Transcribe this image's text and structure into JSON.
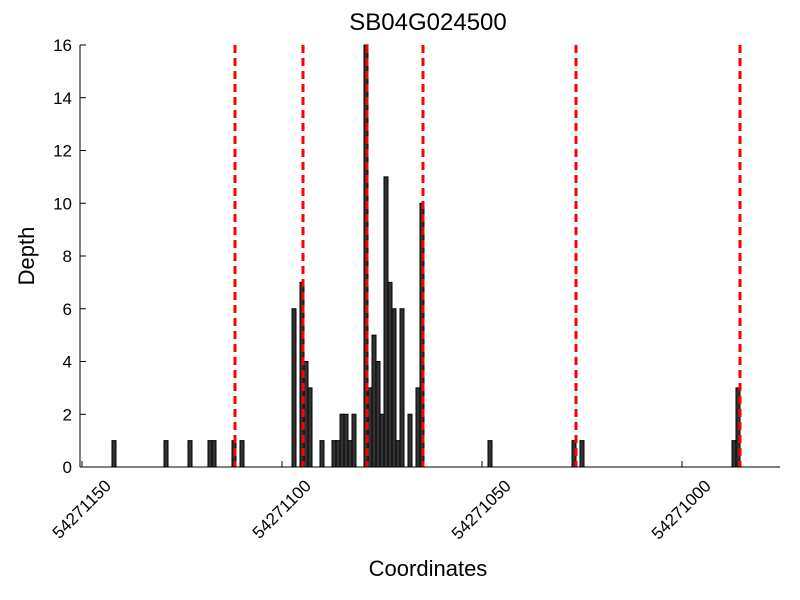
{
  "chart_data": {
    "type": "bar",
    "title": "SB04G024500",
    "xlabel": "Coordinates",
    "ylabel": "Depth",
    "x": [
      54271142,
      54271129,
      54271123,
      54271118,
      54271117,
      54271112,
      54271110,
      54271097,
      54271095,
      54271094,
      54271093,
      54271090,
      54271087,
      54271086,
      54271085,
      54271084,
      54271083,
      54271082,
      54271079,
      54271078,
      54271077,
      54271076,
      54271075,
      54271074,
      54271073,
      54271072,
      54271071,
      54271070,
      54271068,
      54271066,
      54271065,
      54271048,
      54271027,
      54271025,
      54270987,
      54270986
    ],
    "values": [
      1,
      1,
      1,
      1,
      1,
      1,
      1,
      6,
      7,
      4,
      3,
      1,
      1,
      1,
      2,
      2,
      1,
      2,
      16,
      3,
      5,
      4,
      2,
      11,
      7,
      6,
      1,
      6,
      2,
      3,
      10,
      1,
      1,
      1,
      1,
      3
    ],
    "color": "#333333",
    "boundaries": [
      54271111.75,
      54271094.75,
      54271078.75,
      54271064.75,
      54271026.5,
      54270985.5
    ],
    "boundary_color": "#ff0000",
    "xlim": [
      54271150.5,
      54270975.5
    ],
    "xticks": [
      54271150,
      54271100,
      54271050,
      54271000
    ],
    "ylim": [
      0,
      16
    ],
    "yticks": [
      0,
      2,
      4,
      6,
      8,
      10,
      12,
      14,
      16
    ]
  }
}
